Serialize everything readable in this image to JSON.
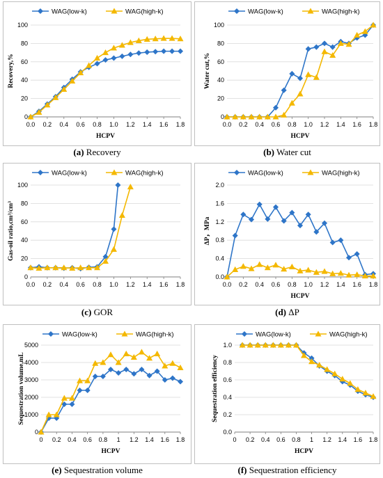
{
  "series_names": [
    "WAG(low-k)",
    "WAG(high-k)"
  ],
  "colors": {
    "low": "#2e75c8",
    "high": "#f4b800"
  },
  "chart_data": [
    {
      "id": "a",
      "type": "line",
      "caption_letter": "(a)",
      "caption_text": " Recovery",
      "xlabel": "HCPV",
      "ylabel": "Recovery,%",
      "xlim": [
        0,
        1.8
      ],
      "ylim": [
        0,
        100
      ],
      "xticks": [
        0,
        0.2,
        0.4,
        0.6,
        0.8,
        1.0,
        1.2,
        1.4,
        1.6,
        1.8
      ],
      "xtick_labels": [
        "0.0",
        "0.2",
        "0.4",
        "0.6",
        "0.8",
        "1.0",
        "1.2",
        "1.4",
        "1.6",
        "1.8"
      ],
      "yticks": [
        0,
        20,
        40,
        60,
        80,
        100
      ],
      "ytick_labels": [
        "0",
        "20",
        "40",
        "60",
        "80",
        "100"
      ],
      "legend": "top",
      "series": [
        {
          "name": "WAG(low-k)",
          "x": [
            0,
            0.1,
            0.2,
            0.3,
            0.4,
            0.5,
            0.6,
            0.7,
            0.8,
            0.9,
            1.0,
            1.1,
            1.2,
            1.3,
            1.4,
            1.5,
            1.6,
            1.7,
            1.8
          ],
          "y": [
            0,
            6,
            14,
            22,
            32,
            41,
            49,
            54,
            58,
            62,
            64,
            66,
            68,
            69.5,
            70.5,
            71,
            71.5,
            71.5,
            71.5
          ]
        },
        {
          "name": "WAG(high-k)",
          "x": [
            0,
            0.1,
            0.2,
            0.3,
            0.4,
            0.5,
            0.6,
            0.7,
            0.8,
            0.9,
            1.0,
            1.1,
            1.2,
            1.3,
            1.4,
            1.5,
            1.6,
            1.7,
            1.8
          ],
          "y": [
            0,
            5,
            13,
            21,
            30,
            39,
            48,
            56,
            64,
            70,
            75,
            78,
            81,
            83,
            84.5,
            85,
            85.5,
            85.5,
            85
          ]
        }
      ]
    },
    {
      "id": "b",
      "type": "line",
      "caption_letter": "(b)",
      "caption_text": " Water cut",
      "xlabel": "HCPV",
      "ylabel": "Water cut,%",
      "xlim": [
        0,
        1.8
      ],
      "ylim": [
        0,
        100
      ],
      "xticks": [
        0,
        0.2,
        0.4,
        0.6,
        0.8,
        1.0,
        1.2,
        1.4,
        1.6,
        1.8
      ],
      "xtick_labels": [
        "0.0",
        "0.2",
        "0.4",
        "0.6",
        "0.8",
        "1.0",
        "1.2",
        "1.4",
        "1.6",
        "1.8"
      ],
      "yticks": [
        0,
        20,
        40,
        60,
        80,
        100
      ],
      "ytick_labels": [
        "0",
        "20",
        "40",
        "60",
        "80",
        "100"
      ],
      "legend": "top",
      "series": [
        {
          "name": "WAG(low-k)",
          "x": [
            0,
            0.1,
            0.2,
            0.3,
            0.4,
            0.5,
            0.6,
            0.7,
            0.8,
            0.9,
            1.0,
            1.1,
            1.2,
            1.3,
            1.4,
            1.5,
            1.6,
            1.7,
            1.8
          ],
          "y": [
            0,
            0,
            0,
            0,
            0,
            0,
            10,
            29,
            47,
            42,
            74,
            76,
            80,
            76,
            82,
            80,
            86,
            89,
            100
          ]
        },
        {
          "name": "WAG(high-k)",
          "x": [
            0,
            0.1,
            0.2,
            0.3,
            0.4,
            0.5,
            0.6,
            0.7,
            0.8,
            0.9,
            1.0,
            1.1,
            1.2,
            1.3,
            1.4,
            1.5,
            1.6,
            1.7,
            1.8
          ],
          "y": [
            0,
            0,
            0,
            0,
            0,
            0,
            0,
            2,
            15,
            25,
            46,
            43,
            71,
            67,
            80,
            79,
            89,
            93,
            100
          ]
        }
      ]
    },
    {
      "id": "c",
      "type": "line",
      "caption_letter": "(c)",
      "caption_text": " GOR",
      "xlabel": "",
      "ylabel": "Gas-oil ratio,cm³/cm³",
      "xlim": [
        0,
        1.8
      ],
      "ylim": [
        0,
        100
      ],
      "xticks": [
        0,
        0.2,
        0.4,
        0.6,
        0.8,
        1.0,
        1.2,
        1.4,
        1.6,
        1.8
      ],
      "xtick_labels": [
        "0.0",
        "0.2",
        "0.4",
        "0.6",
        "0.8",
        "1.0",
        "1.2",
        "1.4",
        "1.6",
        "1.8"
      ],
      "yticks": [
        0,
        20,
        40,
        60,
        80,
        100
      ],
      "ytick_labels": [
        "0",
        "20",
        "40",
        "60",
        "80",
        "100"
      ],
      "legend": "top",
      "series": [
        {
          "name": "WAG(low-k)",
          "x": [
            0,
            0.1,
            0.2,
            0.3,
            0.4,
            0.5,
            0.6,
            0.7,
            0.8,
            0.9,
            1.0,
            1.05
          ],
          "y": [
            10,
            11,
            10,
            10,
            9.5,
            10,
            9,
            10.5,
            11,
            22,
            52,
            100
          ]
        },
        {
          "name": "WAG(high-k)",
          "x": [
            0,
            0.1,
            0.2,
            0.3,
            0.4,
            0.5,
            0.6,
            0.7,
            0.8,
            0.9,
            1.0,
            1.1,
            1.2
          ],
          "y": [
            10,
            9.5,
            10,
            10,
            10,
            9.5,
            10,
            10,
            10,
            17,
            30,
            67,
            98
          ]
        }
      ]
    },
    {
      "id": "d",
      "type": "line",
      "caption_letter": "(d)",
      "caption_text": " ΔP",
      "xlabel": "HCPV",
      "ylabel": "ΔP，MPa",
      "xlim": [
        0,
        1.8
      ],
      "ylim": [
        0,
        2.0
      ],
      "xticks": [
        0,
        0.2,
        0.4,
        0.6,
        0.8,
        1.0,
        1.2,
        1.4,
        1.6,
        1.8
      ],
      "xtick_labels": [
        "0.0",
        "0.2",
        "0.4",
        "0.6",
        "0.8",
        "1.0",
        "1.2",
        "1.4",
        "1.6",
        "1.8"
      ],
      "yticks": [
        0,
        0.4,
        0.8,
        1.2,
        1.6,
        2.0
      ],
      "ytick_labels": [
        "0.0",
        "0.4",
        "0.8",
        "1.2",
        "1.6",
        "2.0"
      ],
      "legend": "top",
      "series": [
        {
          "name": "WAG(low-k)",
          "x": [
            0,
            0.1,
            0.2,
            0.3,
            0.4,
            0.5,
            0.6,
            0.7,
            0.8,
            0.9,
            1.0,
            1.1,
            1.2,
            1.3,
            1.4,
            1.5,
            1.6,
            1.7,
            1.8
          ],
          "y": [
            0,
            0.9,
            1.36,
            1.25,
            1.58,
            1.26,
            1.52,
            1.22,
            1.4,
            1.12,
            1.36,
            0.98,
            1.17,
            0.75,
            0.8,
            0.42,
            0.5,
            0.05,
            0.07
          ]
        },
        {
          "name": "WAG(high-k)",
          "x": [
            0,
            0.1,
            0.2,
            0.3,
            0.4,
            0.5,
            0.6,
            0.7,
            0.8,
            0.9,
            1.0,
            1.1,
            1.2,
            1.3,
            1.4,
            1.5,
            1.6,
            1.7,
            1.8
          ],
          "y": [
            0,
            0.16,
            0.23,
            0.18,
            0.27,
            0.2,
            0.26,
            0.17,
            0.22,
            0.13,
            0.15,
            0.1,
            0.12,
            0.07,
            0.08,
            0.04,
            0.05,
            0.02,
            0.02
          ]
        }
      ]
    },
    {
      "id": "e",
      "type": "line",
      "caption_letter": "(e)",
      "caption_text": " Sequestration volume",
      "xlabel": "HCPV",
      "ylabel": "Sequestration volume,mL",
      "xlim": [
        0,
        1.8
      ],
      "ylim": [
        0,
        5000
      ],
      "xticks": [
        0,
        0.2,
        0.4,
        0.6,
        0.8,
        1.0,
        1.2,
        1.4,
        1.6,
        1.8
      ],
      "xtick_labels": [
        "0",
        "0.2",
        "0.4",
        "0.6",
        "0.8",
        "1",
        "1.2",
        "1.4",
        "1.6",
        "1.8"
      ],
      "yticks": [
        0,
        1000,
        2000,
        3000,
        4000,
        5000
      ],
      "ytick_labels": [
        "0",
        "1000",
        "2000",
        "3000",
        "4000",
        "5000"
      ],
      "legend": "top",
      "series": [
        {
          "name": "WAG(low-k)",
          "x": [
            0,
            0.1,
            0.2,
            0.3,
            0.4,
            0.5,
            0.6,
            0.7,
            0.8,
            0.9,
            1.0,
            1.1,
            1.2,
            1.3,
            1.4,
            1.5,
            1.6,
            1.7,
            1.8
          ],
          "y": [
            0,
            800,
            800,
            1600,
            1600,
            2400,
            2400,
            3200,
            3200,
            3600,
            3400,
            3600,
            3350,
            3600,
            3250,
            3500,
            3000,
            3100,
            2900
          ]
        },
        {
          "name": "WAG(high-k)",
          "x": [
            0,
            0.1,
            0.2,
            0.3,
            0.4,
            0.5,
            0.6,
            0.7,
            0.8,
            0.9,
            1.0,
            1.1,
            1.2,
            1.3,
            1.4,
            1.5,
            1.6,
            1.7,
            1.8
          ],
          "y": [
            0,
            1000,
            1000,
            1950,
            1950,
            2950,
            2950,
            3950,
            4000,
            4450,
            4000,
            4500,
            4300,
            4600,
            4250,
            4500,
            3800,
            3950,
            3700
          ]
        }
      ]
    },
    {
      "id": "f",
      "type": "line",
      "caption_letter": "(f)",
      "caption_text": " Sequestration efficiency",
      "xlabel": "HCPV",
      "ylabel": "Sequestration efficiency",
      "xlim": [
        0,
        1.8
      ],
      "ylim": [
        0,
        1.0
      ],
      "xticks": [
        0,
        0.2,
        0.4,
        0.6,
        0.8,
        1.0,
        1.2,
        1.4,
        1.6,
        1.8
      ],
      "xtick_labels": [
        "0",
        "0.2",
        "0.4",
        "0.6",
        "0.8",
        "1",
        "1.2",
        "1.4",
        "1.6",
        "1.8"
      ],
      "yticks": [
        0,
        0.2,
        0.4,
        0.6,
        0.8,
        1.0
      ],
      "ytick_labels": [
        "0.0",
        "0.2",
        "0.4",
        "0.6",
        "0.8",
        "1.0"
      ],
      "legend": "top",
      "series": [
        {
          "name": "WAG(low-k)",
          "x": [
            0.1,
            0.2,
            0.3,
            0.4,
            0.5,
            0.6,
            0.7,
            0.8,
            0.9,
            1.0,
            1.1,
            1.2,
            1.3,
            1.4,
            1.5,
            1.6,
            1.7,
            1.8
          ],
          "y": [
            1.0,
            1.0,
            1.0,
            1.0,
            1.0,
            1.0,
            1.0,
            1.0,
            0.91,
            0.85,
            0.76,
            0.7,
            0.65,
            0.58,
            0.54,
            0.47,
            0.43,
            0.4
          ]
        },
        {
          "name": "WAG(high-k)",
          "x": [
            0.1,
            0.2,
            0.3,
            0.4,
            0.5,
            0.6,
            0.7,
            0.8,
            0.9,
            1.0,
            1.1,
            1.2,
            1.3,
            1.4,
            1.5,
            1.6,
            1.7,
            1.8
          ],
          "y": [
            1.0,
            1.0,
            1.0,
            1.0,
            1.0,
            1.0,
            1.0,
            1.0,
            0.88,
            0.81,
            0.77,
            0.72,
            0.67,
            0.61,
            0.56,
            0.49,
            0.45,
            0.41
          ]
        }
      ]
    }
  ]
}
